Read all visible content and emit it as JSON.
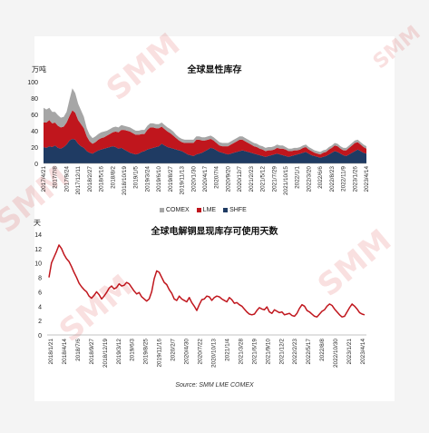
{
  "chart_data": [
    {
      "type": "area",
      "title": "全球显性库存",
      "unit_label": "万吨",
      "ylim": [
        0,
        100
      ],
      "yticks": [
        0,
        20,
        40,
        60,
        80,
        100
      ],
      "x_ticks": [
        "2017/4/21",
        "2017/7/8",
        "2017/9/24",
        "2017/12/11",
        "2018/2/27",
        "2018/5/16",
        "2018/8/2",
        "2018/10/19",
        "2019/1/5",
        "2019/3/24",
        "2019/6/10",
        "2019/8/27",
        "2019/11/13",
        "2020/1/30",
        "2020/4/17",
        "2020/7/4",
        "2020/9/20",
        "2020/12/7",
        "2021/2/23",
        "2021/5/12",
        "2021/7/29",
        "2021/10/15",
        "2022/1/1",
        "2022/3/20",
        "2022/6/6",
        "2022/8/23",
        "2022/11/9",
        "2023/1/26",
        "2023/4/14"
      ],
      "stacked": true,
      "series": [
        {
          "name": "SHFE",
          "color": "#1f3b63",
          "values": [
            20,
            19,
            21,
            20,
            22,
            19,
            18,
            20,
            23,
            28,
            30,
            29,
            24,
            21,
            19,
            15,
            13,
            12,
            14,
            16,
            17,
            18,
            19,
            20,
            21,
            20,
            18,
            19,
            17,
            15,
            13,
            12,
            11,
            12,
            14,
            15,
            17,
            18,
            19,
            20,
            21,
            24,
            22,
            20,
            19,
            18,
            17,
            16,
            15,
            13,
            11,
            10,
            9,
            11,
            12,
            13,
            15,
            17,
            19,
            18,
            16,
            14,
            13,
            12,
            11,
            12,
            13,
            14,
            15,
            16,
            15,
            14,
            13,
            12,
            11,
            10,
            9,
            8,
            9,
            10,
            11,
            12,
            11,
            10,
            9,
            8,
            9,
            10,
            11,
            12,
            13,
            14,
            12,
            10,
            9,
            8,
            7,
            8,
            9,
            11,
            13,
            15,
            14,
            12,
            10,
            9,
            11,
            13,
            15,
            17,
            15,
            13,
            12
          ]
        },
        {
          "name": "LME",
          "color": "#c0161d",
          "values": [
            30,
            31,
            32,
            29,
            28,
            27,
            26,
            25,
            27,
            30,
            35,
            33,
            29,
            27,
            24,
            18,
            14,
            12,
            12,
            13,
            14,
            14,
            15,
            16,
            17,
            19,
            20,
            22,
            24,
            25,
            26,
            25,
            24,
            23,
            22,
            21,
            24,
            26,
            25,
            23,
            22,
            21,
            20,
            19,
            18,
            16,
            14,
            12,
            11,
            12,
            14,
            15,
            16,
            18,
            17,
            15,
            13,
            12,
            11,
            10,
            9,
            8,
            8,
            9,
            10,
            11,
            12,
            13,
            14,
            13,
            12,
            11,
            10,
            9,
            9,
            8,
            8,
            7,
            7,
            6,
            6,
            7,
            7,
            8,
            8,
            7,
            6,
            6,
            5,
            5,
            6,
            6,
            5,
            5,
            4,
            4,
            4,
            5,
            5,
            6,
            6,
            7,
            7,
            6,
            6,
            7,
            8,
            9,
            10,
            9,
            8,
            7,
            6
          ]
        },
        {
          "name": "COMEX",
          "color": "#a6a6a6",
          "values": [
            18,
            16,
            15,
            14,
            13,
            13,
            12,
            12,
            13,
            20,
            27,
            24,
            20,
            17,
            14,
            10,
            8,
            7,
            7,
            7,
            7,
            7,
            6,
            6,
            6,
            6,
            6,
            6,
            5,
            5,
            5,
            5,
            5,
            5,
            5,
            5,
            5,
            5,
            5,
            5,
            5,
            5,
            5,
            5,
            5,
            5,
            4,
            4,
            4,
            4,
            4,
            4,
            4,
            4,
            4,
            4,
            4,
            4,
            4,
            4,
            4,
            4,
            4,
            4,
            4,
            4,
            4,
            4,
            4,
            4,
            4,
            4,
            4,
            4,
            4,
            4,
            4,
            4,
            4,
            4,
            4,
            4,
            4,
            4,
            3,
            3,
            3,
            3,
            3,
            3,
            3,
            3,
            3,
            3,
            3,
            3,
            3,
            3,
            3,
            3,
            3,
            3,
            3,
            3,
            3,
            3,
            3,
            3,
            3,
            3,
            3,
            3,
            3
          ]
        }
      ]
    },
    {
      "type": "line",
      "title": "全球电解铜显现库存可使用天数",
      "unit_label": "天",
      "ylim": [
        0,
        14
      ],
      "yticks": [
        0,
        2,
        4,
        6,
        8,
        10,
        12,
        14
      ],
      "x_ticks": [
        "2018/1/21",
        "2018/4/14",
        "2018/7/6",
        "2018/9/27",
        "2018/12/19",
        "2019/3/12",
        "2019/6/3",
        "2019/8/25",
        "2019/11/16",
        "2020/2/7",
        "2020/4/30",
        "2020/7/22",
        "2020/10/13",
        "2021/1/4",
        "2021/3/28",
        "2021/6/19",
        "2021/9/10",
        "2021/12/2",
        "2022/2/23",
        "2022/5/17",
        "2022/8/8",
        "2022/10/30",
        "2023/1/21",
        "2023/4/14"
      ],
      "series": [
        {
          "color": "#c0161d",
          "values": [
            8.0,
            10.0,
            10.8,
            11.6,
            12.5,
            12.0,
            11.2,
            10.6,
            10.2,
            9.5,
            8.7,
            8.0,
            7.2,
            6.7,
            6.3,
            6.0,
            5.4,
            5.1,
            5.5,
            6.0,
            5.6,
            5.0,
            5.4,
            5.9,
            6.5,
            6.8,
            6.4,
            6.6,
            7.1,
            6.8,
            6.9,
            7.3,
            7.1,
            6.6,
            6.1,
            5.7,
            5.9,
            5.3,
            5.0,
            4.7,
            5.0,
            6.0,
            7.8,
            8.9,
            8.7,
            8.0,
            7.3,
            7.0,
            6.3,
            5.8,
            5.0,
            4.8,
            5.4,
            5.0,
            4.8,
            4.6,
            5.2,
            4.5,
            4.0,
            3.4,
            4.2,
            4.9,
            5.0,
            5.4,
            5.3,
            4.8,
            5.2,
            5.4,
            5.3,
            5.0,
            4.8,
            4.6,
            5.2,
            4.9,
            4.4,
            4.5,
            4.2,
            4.0,
            3.6,
            3.2,
            2.9,
            2.8,
            2.9,
            3.4,
            3.8,
            3.6,
            3.5,
            3.9,
            3.2,
            3.0,
            3.5,
            3.3,
            3.1,
            3.2,
            2.8,
            2.9,
            3.0,
            2.7,
            2.6,
            3.0,
            3.7,
            4.2,
            4.0,
            3.4,
            3.2,
            2.9,
            2.6,
            2.5,
            2.9,
            3.3,
            3.5,
            4.0,
            4.3,
            4.1,
            3.6,
            3.2,
            2.8,
            2.5,
            2.6,
            3.2,
            3.8,
            4.3,
            4.0,
            3.6,
            3.1,
            2.9,
            2.8
          ]
        }
      ]
    }
  ],
  "legend": {
    "items": [
      {
        "label": "COMEX",
        "color": "#a6a6a6"
      },
      {
        "label": "LME",
        "color": "#c0161d"
      },
      {
        "label": "SHFE",
        "color": "#1f3b63"
      }
    ]
  },
  "source": "Source: SMM  LME  COMEX",
  "watermark": "SMM"
}
